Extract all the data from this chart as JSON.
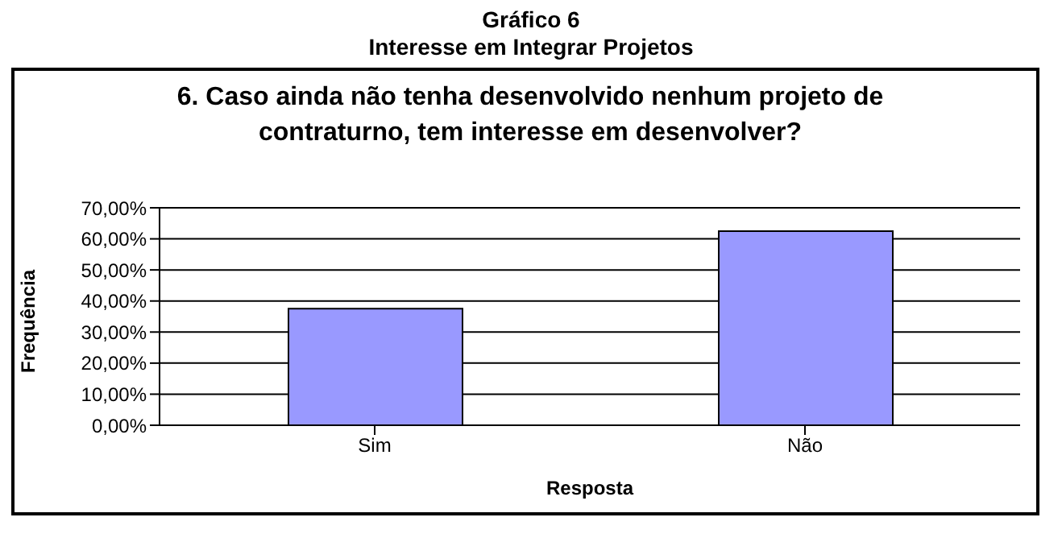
{
  "chart_data": {
    "type": "bar",
    "title": "Gráfico 6",
    "subtitle": "Interesse em Integrar Projetos",
    "annotations": [
      "6. Caso ainda não tenha desenvolvido nenhum projeto de contraturno, tem interesse em desenvolver?"
    ],
    "xlabel": "Resposta",
    "ylabel": "Frequência",
    "categories": [
      "Sim",
      "Não"
    ],
    "values": [
      37.5,
      62.5
    ],
    "color": "#9999ff",
    "ylim": [
      0,
      70
    ],
    "yticks": [
      {
        "value": 0,
        "label": "0,00%"
      },
      {
        "value": 10,
        "label": "10,00%"
      },
      {
        "value": 20,
        "label": "20,00%"
      },
      {
        "value": 30,
        "label": "30,00%"
      },
      {
        "value": 40,
        "label": "40,00%"
      },
      {
        "value": 50,
        "label": "50,00%"
      },
      {
        "value": 60,
        "label": "60,00%"
      },
      {
        "value": 70,
        "label": "70,00%"
      }
    ],
    "grid": "y",
    "legend": false
  }
}
